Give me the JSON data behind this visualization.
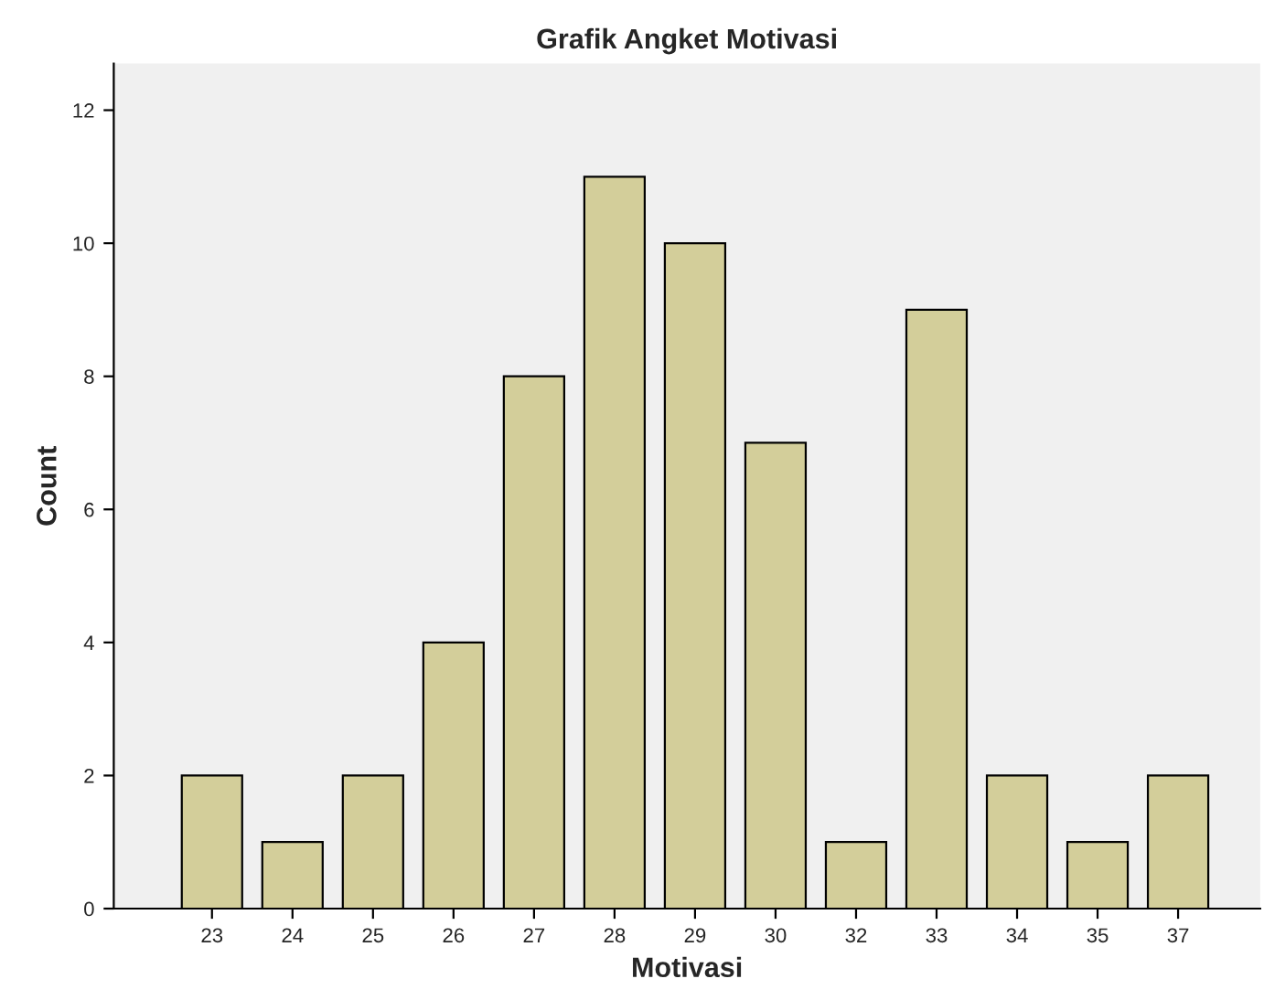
{
  "chart_data": {
    "type": "bar",
    "title": "Grafik Angket Motivasi",
    "xlabel": "Motivasi",
    "ylabel": "Count",
    "categories": [
      "23",
      "24",
      "25",
      "26",
      "27",
      "28",
      "29",
      "30",
      "32",
      "33",
      "34",
      "35",
      "37"
    ],
    "values": [
      2,
      1,
      2,
      4,
      8,
      11,
      10,
      7,
      1,
      9,
      2,
      1,
      2
    ],
    "color": "#d3ce9a",
    "ylim": [
      0,
      12.7
    ],
    "yticks": [
      0,
      2,
      4,
      6,
      8,
      10,
      12
    ],
    "grid": false
  }
}
